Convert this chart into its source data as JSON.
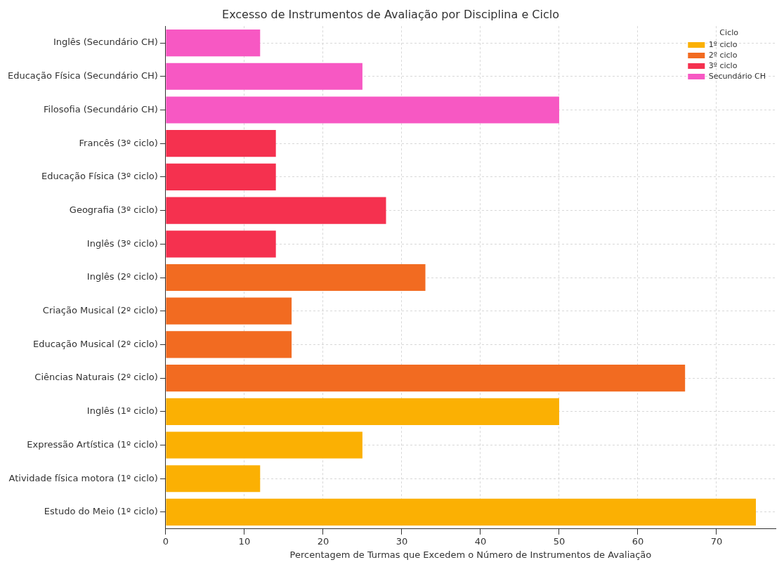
{
  "chart_data": {
    "type": "bar",
    "orientation": "horizontal",
    "title": "Excesso de Instrumentos de Avaliação por Disciplina e Ciclo",
    "xlabel": "Percentagem de Turmas que Excedem o Número de Instrumentos de Avaliação",
    "legend_title": "Ciclo",
    "legend": "top right",
    "grid": true,
    "xlim": [
      0,
      77.5
    ],
    "xticks": [
      0,
      10,
      20,
      30,
      40,
      50,
      60,
      70
    ],
    "categories": [
      "Inglês (Secundário CH)",
      "Educação Física (Secundário CH)",
      "Filosofia (Secundário CH)",
      "Francês (3º ciclo)",
      "Educação Física (3º ciclo)",
      "Geografia (3º ciclo)",
      "Inglês (3º ciclo)",
      "Inglês (2º ciclo)",
      "Criação Musical (2º ciclo)",
      "Educação Musical (2º ciclo)",
      "Ciências Naturais (2º ciclo)",
      "Inglês (1º ciclo)",
      "Expressão Artística (1º ciclo)",
      "Atividade física motora (1º ciclo)",
      "Estudo do Meio (1º ciclo)"
    ],
    "series": [
      {
        "name": "1º ciclo",
        "color": "#fbb003",
        "values": [
          null,
          null,
          null,
          null,
          null,
          null,
          null,
          null,
          null,
          null,
          null,
          50,
          25,
          12,
          75
        ]
      },
      {
        "name": "2º ciclo",
        "color": "#f26b21",
        "values": [
          null,
          null,
          null,
          null,
          null,
          null,
          null,
          33,
          16,
          16,
          66,
          null,
          null,
          null,
          null
        ]
      },
      {
        "name": "3º ciclo",
        "color": "#f5314f",
        "values": [
          null,
          null,
          null,
          14,
          14,
          28,
          14,
          null,
          null,
          null,
          null,
          null,
          null,
          null,
          null
        ]
      },
      {
        "name": "Secundário CH",
        "color": "#f758c3",
        "values": [
          12,
          25,
          50,
          null,
          null,
          null,
          null,
          null,
          null,
          null,
          null,
          null,
          null,
          null,
          null
        ]
      }
    ]
  }
}
